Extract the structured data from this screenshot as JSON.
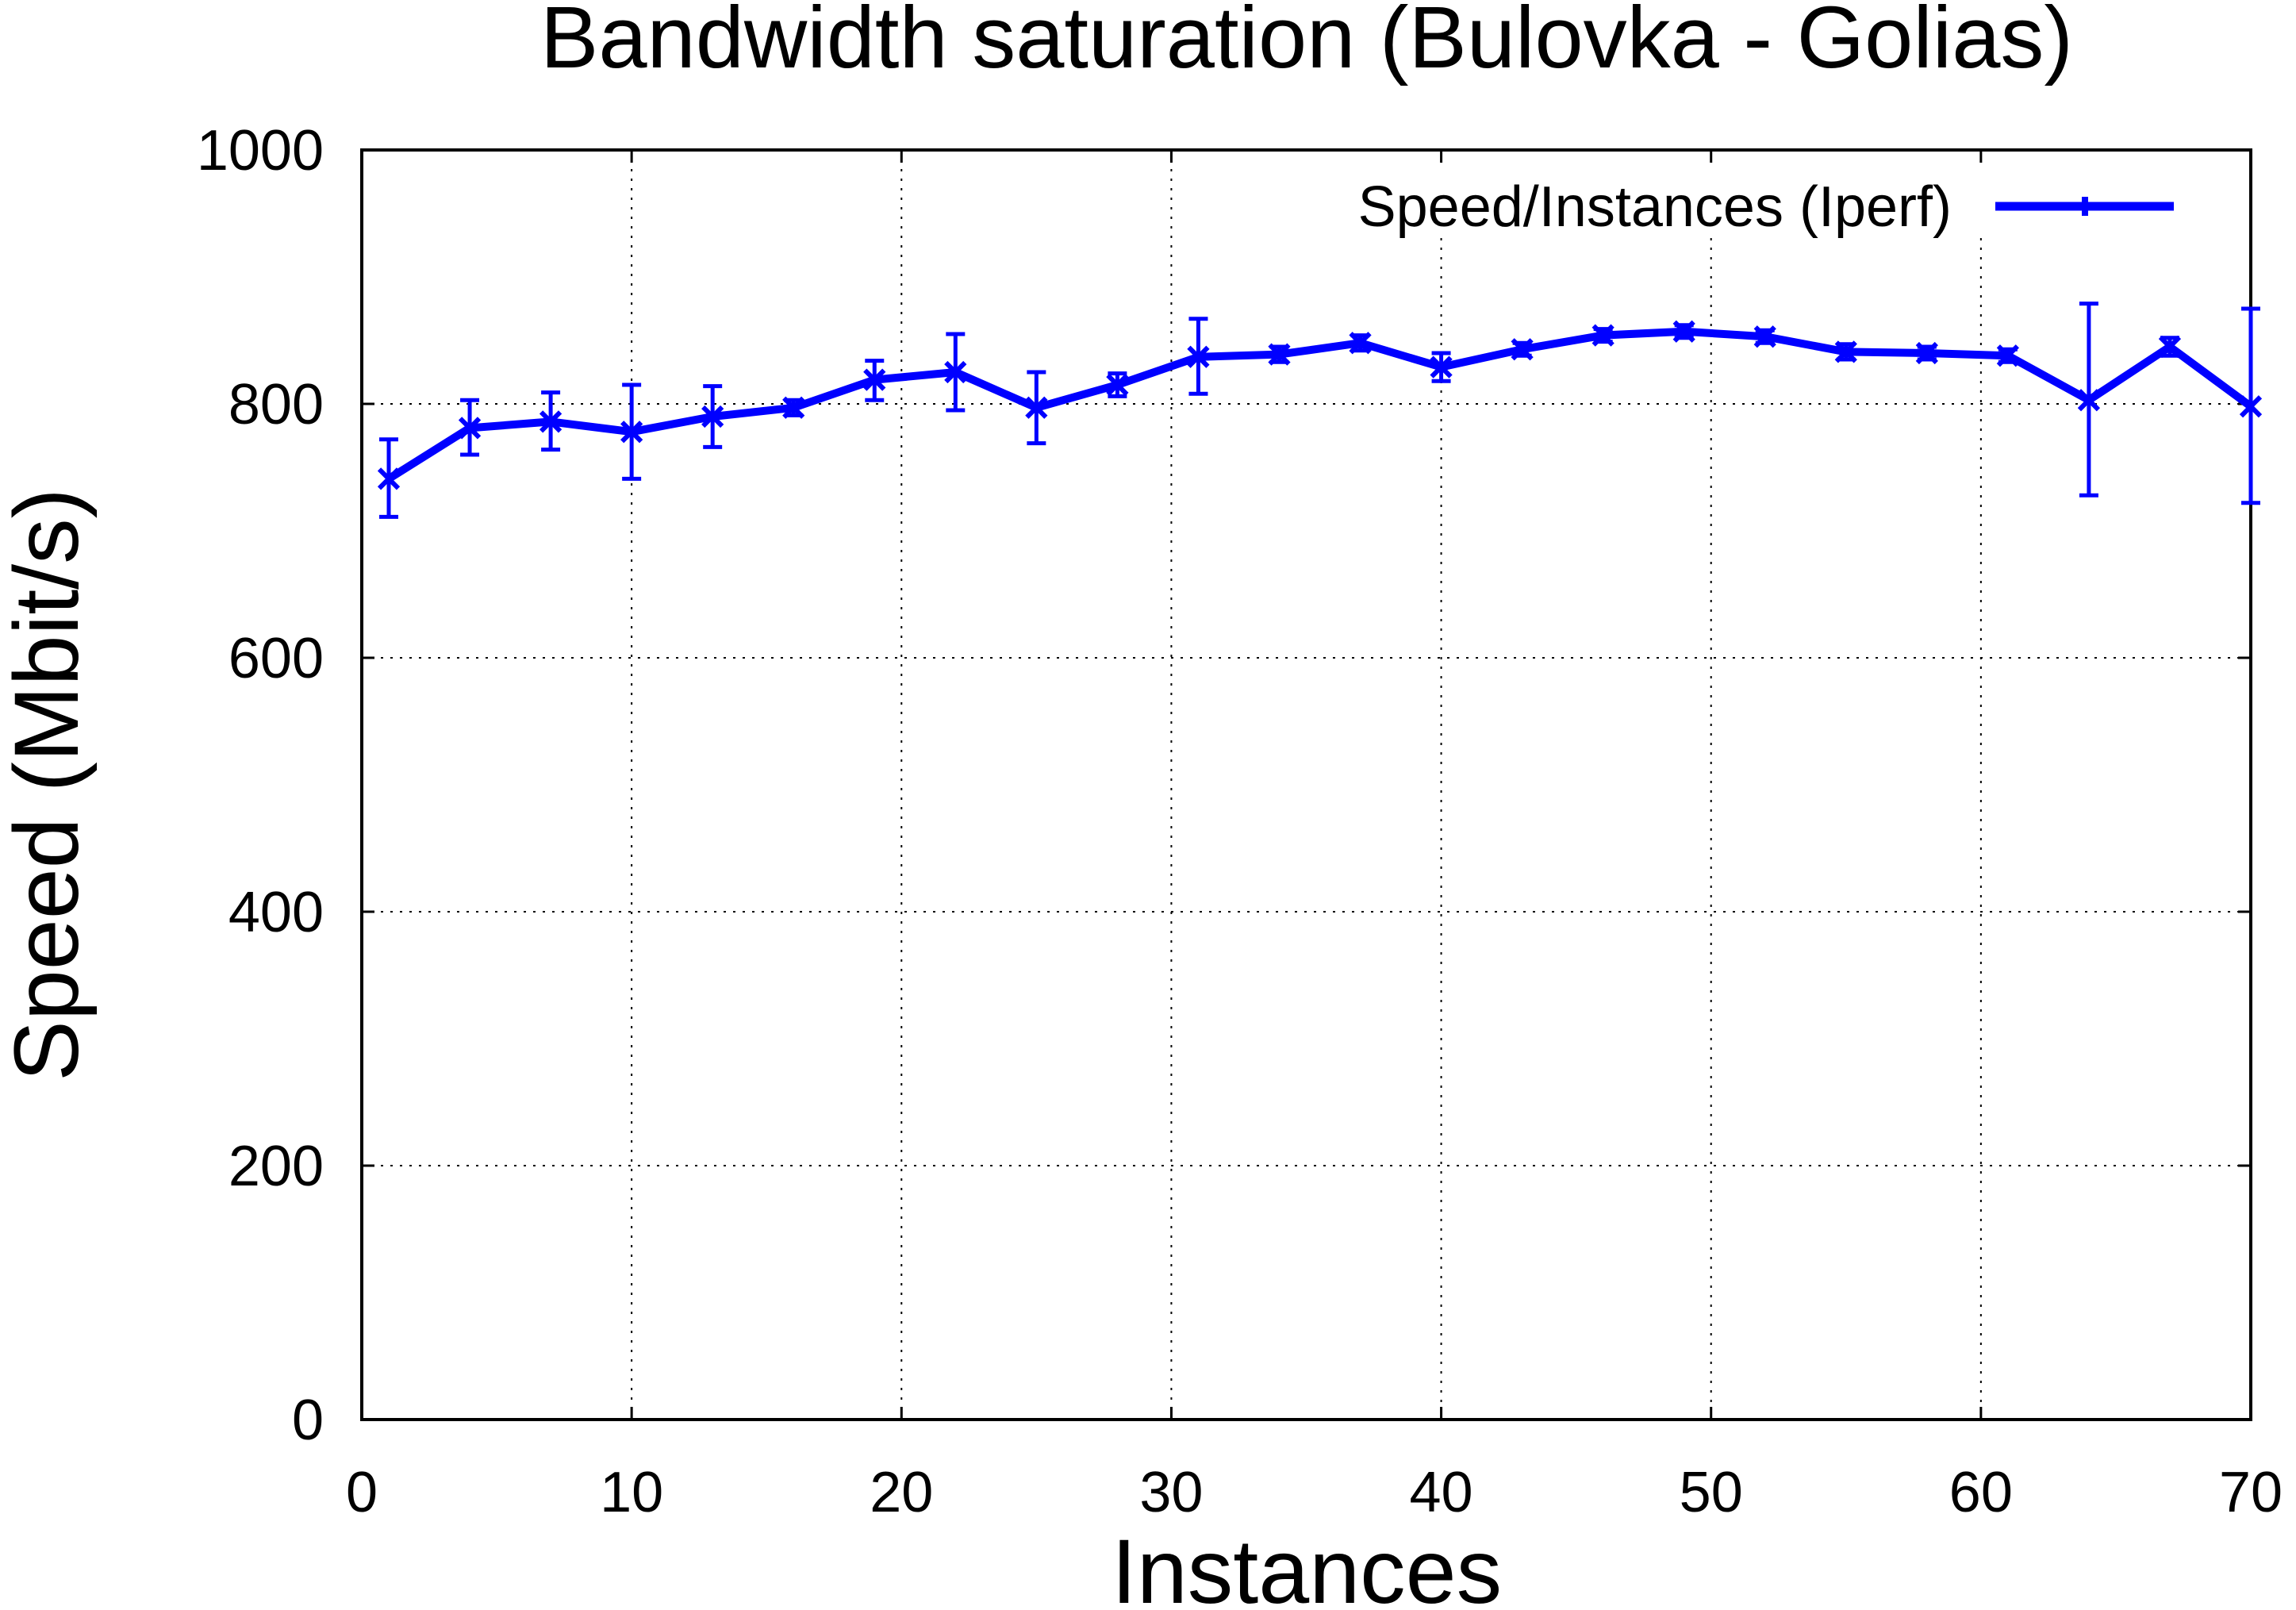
{
  "chart_data": {
    "type": "line",
    "title": "Bandwidth saturation (Bulovka - Golias)",
    "xlabel": "Instances",
    "ylabel": "Speed (Mbit/s)",
    "xlim": [
      0,
      70
    ],
    "ylim": [
      0,
      1000
    ],
    "xticks": [
      "0",
      "10",
      "20",
      "30",
      "40",
      "50",
      "60",
      "70"
    ],
    "yticks": [
      "0",
      "200",
      "400",
      "600",
      "800",
      "1000"
    ],
    "grid": true,
    "legend_position": "top-right",
    "series": [
      {
        "name": "Speed/Instances (Iperf)",
        "color": "#0000ff",
        "marker": "x",
        "error_bars": true,
        "points": [
          {
            "x": 1,
            "y": 741,
            "low": 711,
            "high": 772
          },
          {
            "x": 4,
            "y": 781,
            "low": 760,
            "high": 803
          },
          {
            "x": 7,
            "y": 786,
            "low": 764,
            "high": 809
          },
          {
            "x": 10,
            "y": 778,
            "low": 741,
            "high": 815
          },
          {
            "x": 13,
            "y": 790,
            "low": 766,
            "high": 814
          },
          {
            "x": 16,
            "y": 797,
            "low": 791,
            "high": 803
          },
          {
            "x": 19,
            "y": 819,
            "low": 803,
            "high": 834
          },
          {
            "x": 22,
            "y": 825,
            "low": 795,
            "high": 855
          },
          {
            "x": 25,
            "y": 797,
            "low": 769,
            "high": 825
          },
          {
            "x": 28,
            "y": 815,
            "low": 806,
            "high": 824
          },
          {
            "x": 31,
            "y": 837,
            "low": 808,
            "high": 867
          },
          {
            "x": 34,
            "y": 839,
            "low": 833,
            "high": 845
          },
          {
            "x": 37,
            "y": 848,
            "low": 842,
            "high": 854
          },
          {
            "x": 40,
            "y": 829,
            "low": 818,
            "high": 840
          },
          {
            "x": 43,
            "y": 843,
            "low": 838,
            "high": 848
          },
          {
            "x": 46,
            "y": 854,
            "low": 849,
            "high": 859
          },
          {
            "x": 49,
            "y": 857,
            "low": 852,
            "high": 862
          },
          {
            "x": 52,
            "y": 853,
            "low": 848,
            "high": 858
          },
          {
            "x": 55,
            "y": 841,
            "low": 835,
            "high": 847
          },
          {
            "x": 58,
            "y": 840,
            "low": 835,
            "high": 845
          },
          {
            "x": 61,
            "y": 838,
            "low": 833,
            "high": 843
          },
          {
            "x": 64,
            "y": 803,
            "low": 728,
            "high": 879
          },
          {
            "x": 67,
            "y": 845,
            "low": 838,
            "high": 852
          },
          {
            "x": 70,
            "y": 798,
            "low": 722,
            "high": 875
          }
        ]
      }
    ]
  }
}
